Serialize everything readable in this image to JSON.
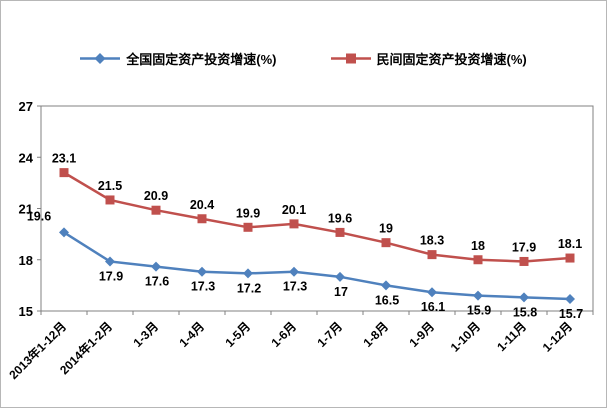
{
  "chart_data": {
    "type": "line",
    "title": "",
    "xlabel": "",
    "ylabel": "",
    "categories": [
      "2013年1-12月",
      "2014年1-2月",
      "1-3月",
      "1-4月",
      "1-5月",
      "1-6月",
      "1-7月",
      "1-8月",
      "1-9月",
      "1-10月",
      "1-11月",
      "1-12月"
    ],
    "series": [
      {
        "name": "全国固定资产投资增速(%)",
        "color": "#4F81BD",
        "marker": "diamond",
        "label_position": "below",
        "values": [
          19.6,
          17.9,
          17.6,
          17.3,
          17.2,
          17.3,
          17,
          16.5,
          16.1,
          15.9,
          15.8,
          15.7
        ]
      },
      {
        "name": "民间固定资产投资增速(%)",
        "color": "#C0504D",
        "marker": "square",
        "label_position": "above",
        "values": [
          23.1,
          21.5,
          20.9,
          20.4,
          19.9,
          20.1,
          19.6,
          19,
          18.3,
          18,
          17.9,
          18.1
        ]
      }
    ],
    "ylim": [
      15,
      27
    ],
    "yticks": [
      15,
      18,
      21,
      24,
      27
    ],
    "grid": false,
    "legend_position": "top",
    "axis_color": "#808080",
    "label_color": "#000000"
  }
}
